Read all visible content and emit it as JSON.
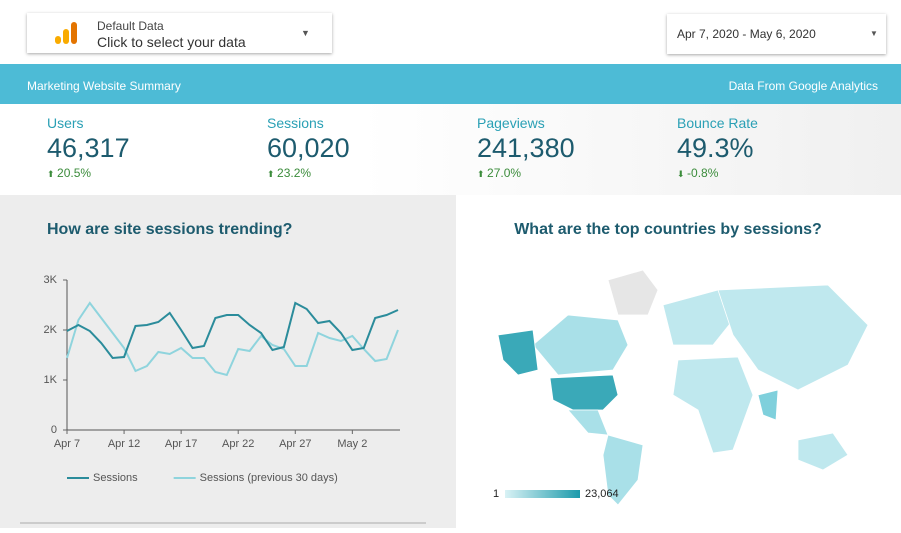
{
  "header": {
    "data_source_label": "Default Data",
    "data_source_prompt": "Click to select your data",
    "date_range": "Apr 7, 2020 - May 6, 2020",
    "banner_left": "Marketing Website Summary",
    "banner_right": "Data From Google Analytics"
  },
  "kpis": [
    {
      "label": "Users",
      "value": "46,317",
      "change": "20.5%"
    },
    {
      "label": "Sessions",
      "value": "60,020",
      "change": "23.2%"
    },
    {
      "label": "Pageviews",
      "value": "241,380",
      "change": "27.0%"
    },
    {
      "label": "Bounce Rate",
      "value": "49.3%",
      "change": "-0.8%"
    }
  ],
  "chart_data": {
    "type": "line",
    "title": "How are site sessions trending?",
    "categories": [
      "Apr 7",
      null,
      null,
      null,
      null,
      "Apr 12",
      null,
      null,
      null,
      null,
      "Apr 17",
      null,
      null,
      null,
      null,
      "Apr 22",
      null,
      null,
      null,
      null,
      "Apr 27",
      null,
      null,
      null,
      null,
      "May 2",
      null,
      null,
      null,
      null
    ],
    "series": [
      {
        "name": "Sessions",
        "color": "#2b8c9b",
        "values": [
          1980,
          2100,
          1980,
          1740,
          1440,
          1460,
          2080,
          2100,
          2160,
          2340,
          2000,
          1640,
          1680,
          2240,
          2300,
          2300,
          2100,
          1940,
          1600,
          1660,
          2540,
          2420,
          2140,
          2180,
          1940,
          1600,
          1640,
          2240,
          2300,
          2400
        ]
      },
      {
        "name": "Sessions (previous 30 days)",
        "color": "#8fd4dd",
        "values": [
          1440,
          2200,
          2540,
          2240,
          1940,
          1640,
          1180,
          1280,
          1560,
          1520,
          1640,
          1440,
          1440,
          1160,
          1100,
          1620,
          1580,
          1880,
          1700,
          1620,
          1280,
          1280,
          1940,
          1840,
          1780,
          1880,
          1620,
          1380,
          1420,
          2000
        ]
      }
    ],
    "ylim": [
      0,
      3000
    ],
    "yticks": [
      0,
      {
        "value": 1000,
        "label": "1K"
      },
      {
        "value": 2000,
        "label": "2K"
      },
      {
        "value": 3000,
        "label": "3K"
      }
    ]
  },
  "map": {
    "title": "What are the top countries by sessions?",
    "legend_min": "1",
    "legend_max": "23,064"
  }
}
